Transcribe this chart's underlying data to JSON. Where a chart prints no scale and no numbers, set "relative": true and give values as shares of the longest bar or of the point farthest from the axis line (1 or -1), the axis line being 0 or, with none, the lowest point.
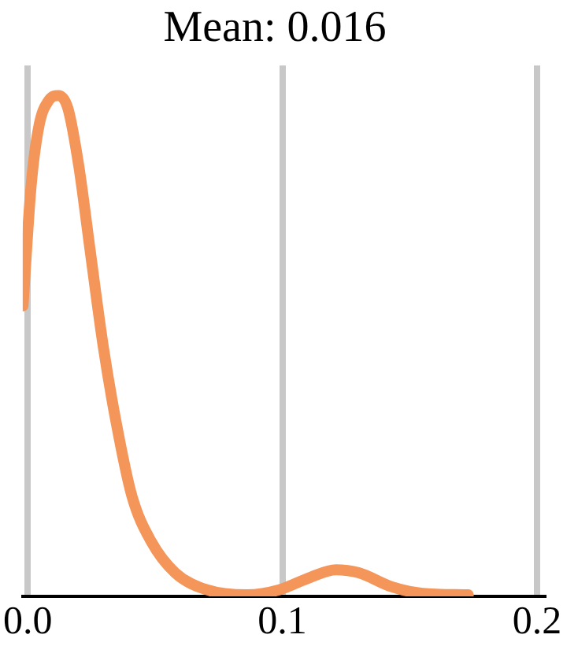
{
  "chart_data": {
    "type": "line",
    "title": "Mean: 0.016",
    "relative": true,
    "x": [
      -0.0019,
      0.0013,
      0.0044,
      0.0082,
      0.012,
      0.0157,
      0.02,
      0.0245,
      0.0296,
      0.0346,
      0.0409,
      0.0484,
      0.0579,
      0.0704,
      0.0862,
      0.0987,
      0.111,
      0.121,
      0.13,
      0.143,
      0.155,
      0.173
    ],
    "series": [
      {
        "color": "#f4955a",
        "values": [
          0.58,
          0.82,
          0.94,
          0.99,
          1.0,
          0.975,
          0.86,
          0.69,
          0.5,
          0.35,
          0.2,
          0.11,
          0.047,
          0.013,
          0.003,
          0.013,
          0.038,
          0.053,
          0.047,
          0.019,
          0.006,
          0.003
        ]
      }
    ],
    "xlim": [
      -0.002,
      0.2025
    ],
    "xticks": [
      {
        "value": 0,
        "label": "0.0"
      },
      0.1,
      0.2
    ],
    "grid": "x",
    "legend": false,
    "marker": "none",
    "line_style": "solid"
  }
}
